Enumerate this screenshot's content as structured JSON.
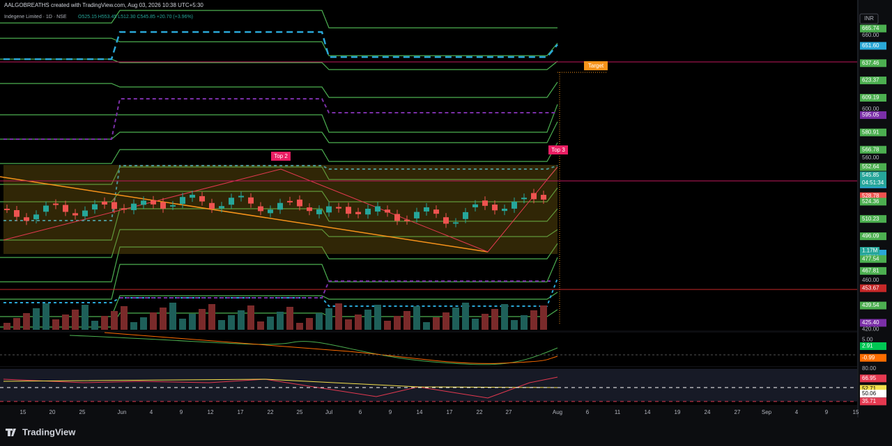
{
  "header": {
    "byline": "AALGOBREATHS created with TradingView.com, Aug 03, 2026 10:38 UTC+5:30",
    "symbol": "Indegene Limited · 1D · NSE",
    "ohlc": "O525.15 H553.45 L512.30 C545.85 +20.70 (+3.96%)"
  },
  "currency": "INR",
  "annotations": {
    "target": "Target",
    "top2": "Top 2",
    "top3": "Top 3"
  },
  "price_axis": [
    {
      "text": "665.74",
      "color": "#4caf50"
    },
    {
      "text": "660.00",
      "color": ""
    },
    {
      "text": "651.60",
      "color": "#2aa8d8"
    },
    {
      "text": "637.46",
      "color": "#4caf50"
    },
    {
      "text": "623.37",
      "color": "#4caf50"
    },
    {
      "text": "609.19",
      "color": "#4caf50"
    },
    {
      "text": "600.00",
      "color": ""
    },
    {
      "text": "595.05",
      "color": "#7b2fa8"
    },
    {
      "text": "580.91",
      "color": "#4caf50"
    },
    {
      "text": "566.78",
      "color": "#4caf50"
    },
    {
      "text": "560.00",
      "color": ""
    },
    {
      "text": "552.64",
      "color": "#4caf50"
    },
    {
      "text": "545.85",
      "color": "#26a69a"
    },
    {
      "text": "538.50",
      "color": "#2aa8d8"
    },
    {
      "text": "528.78",
      "color": "#ef5350"
    },
    {
      "text": "524.36",
      "color": "#4caf50"
    },
    {
      "text": "510.23",
      "color": "#4caf50"
    },
    {
      "text": "496.09",
      "color": "#4caf50"
    },
    {
      "text": "481.95",
      "color": "#2aa8d8"
    },
    {
      "text": "477.54",
      "color": "#4caf50"
    },
    {
      "text": "467.81",
      "color": "#4caf50"
    },
    {
      "text": "460.00",
      "color": ""
    },
    {
      "text": "453.67",
      "color": "#c62828"
    },
    {
      "text": "439.54",
      "color": "#4caf50"
    },
    {
      "text": "425.40",
      "color": "#7b2fa8"
    },
    {
      "text": "420.00",
      "color": ""
    }
  ],
  "countdown": "04:51:34",
  "volume_label": "1.17M",
  "macd_axis": [
    {
      "text": "5.00",
      "color": ""
    },
    {
      "text": "2.91",
      "color": "#00c853"
    },
    {
      "text": "-0.99",
      "color": "#ff6d00"
    }
  ],
  "rsi_axis": [
    {
      "text": "80.00",
      "color": ""
    },
    {
      "text": "66.95",
      "color": "#e53950"
    },
    {
      "text": "52.71",
      "color": "#f4e04d"
    },
    {
      "text": "50.06",
      "color": "#ffffff"
    },
    {
      "text": "35.71",
      "color": "#e53950"
    }
  ],
  "time_axis": [
    "15",
    "20",
    "25",
    "Jun",
    "4",
    "9",
    "12",
    "17",
    "22",
    "25",
    "Jul",
    "6",
    "9",
    "14",
    "17",
    "22",
    "27",
    "Aug",
    "6",
    "11",
    "14",
    "19",
    "24",
    "27",
    "Sep",
    "4",
    "9",
    "15"
  ],
  "footer": {
    "logo": "TradingView"
  }
}
